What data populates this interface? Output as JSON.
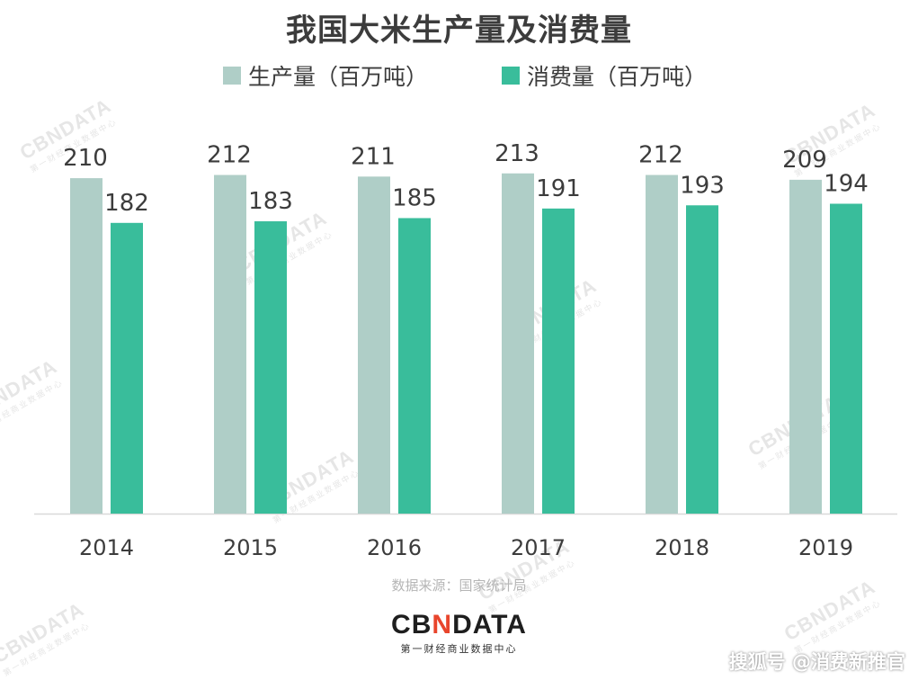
{
  "chart_data": {
    "type": "bar",
    "title": "我国大米生产量及消费量",
    "categories": [
      "2014",
      "2015",
      "2016",
      "2017",
      "2018",
      "2019"
    ],
    "series": [
      {
        "name": "生产量（百万吨）",
        "values": [
          210,
          212,
          211,
          213,
          212,
          209
        ],
        "color": "#afcec7"
      },
      {
        "name": "消费量（百万吨）",
        "values": [
          182,
          183,
          185,
          191,
          193,
          194
        ],
        "color": "#39bd9b"
      }
    ],
    "ylim": [
      0,
      223
    ],
    "grid": false,
    "legend_position": "top-center",
    "xlabel": "",
    "ylabel": ""
  },
  "source_text": "数据来源：国家统计局",
  "logo": {
    "main_prefix": "CB",
    "main_mid": "N",
    "main_suffix": "DATA",
    "sub": "第一财经商业数据中心"
  },
  "watermark": {
    "main": "CBNDATA",
    "sub": "第一财经商业数据中心"
  },
  "credit": "搜狐号 @消费新推官",
  "colors": {
    "title": "#3c3c3c",
    "axis_line": "#d9d9d9",
    "label": "#3c3c3c"
  }
}
